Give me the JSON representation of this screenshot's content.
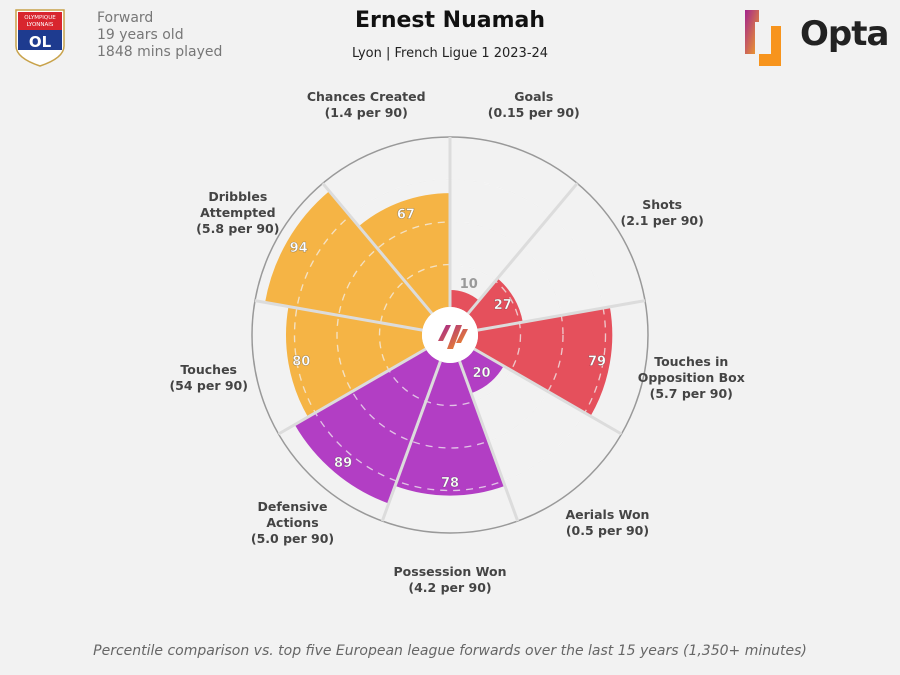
{
  "header": {
    "player": "Ernest Nuamah",
    "subtitle": "Lyon | French Ligue 1 2023-24",
    "position": "Forward",
    "age": "19 years old",
    "minutes": "1848 mins played",
    "club_crest_text": "OLYMPIQUE LYONNAIS",
    "brand": "Opta"
  },
  "footer": "Percentile comparison vs. top five European league forwards over the last 15 years (1,350+ minutes)",
  "chart_data": {
    "type": "pie",
    "subtype": "polar-area percentile pizza",
    "range": [
      0,
      100
    ],
    "grid": "dashed rings",
    "categories": [
      "Goals\n(0.15 per 90)",
      "Shots\n(2.1 per 90)",
      "Touches in\nOpposition Box\n(5.7 per 90)",
      "Aerials Won\n(0.5 per 90)",
      "Possession Won\n(4.2 per 90)",
      "Defensive\nActions\n(5.0 per 90)",
      "Touches\n(54 per 90)",
      "Dribbles\nAttempted\n(5.8 per 90)",
      "Chances Created\n(1.4 per 90)"
    ],
    "values": [
      10,
      27,
      79,
      20,
      78,
      89,
      80,
      94,
      67
    ],
    "groups": [
      "attacking",
      "attacking",
      "attacking",
      "defending",
      "defending",
      "defending",
      "possession",
      "possession",
      "possession"
    ],
    "colors": {
      "attacking": "#e5505c",
      "defending": "#b23ec4",
      "possession": "#f5b445"
    }
  }
}
